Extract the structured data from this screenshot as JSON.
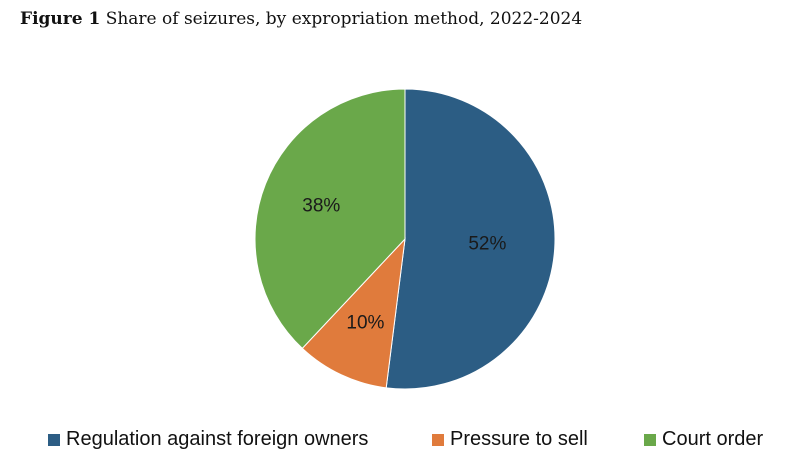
{
  "caption": {
    "label": "Figure 1",
    "text": "Share of seizures, by expropriation method, 2022-2024"
  },
  "chart_data": {
    "type": "pie",
    "title": "Figure 1 Share of seizures, by expropriation method, 2022-2024",
    "legend_position": "bottom",
    "slices": [
      {
        "name": "Regulation against foreign owners",
        "value": 52,
        "label": "52%",
        "color": "#2c5d84"
      },
      {
        "name": "Pressure to sell",
        "value": 10,
        "label": "10%",
        "color": "#e07b3c"
      },
      {
        "name": "Court order",
        "value": 38,
        "label": "38%",
        "color": "#6aa84a"
      }
    ]
  }
}
